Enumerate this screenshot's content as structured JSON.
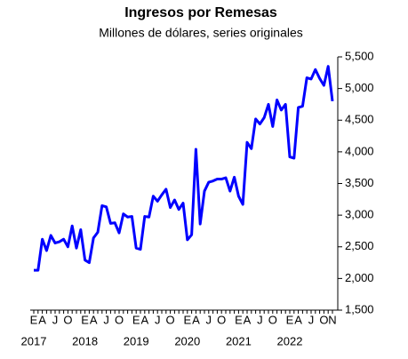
{
  "chart_data": {
    "type": "line",
    "title": "Ingresos por Remesas",
    "subtitle": "Millones de dólares, series originales",
    "categories": [
      "E",
      null,
      "A",
      null,
      null,
      "J",
      null,
      null,
      "O",
      null,
      null,
      null,
      "E",
      null,
      "A",
      null,
      null,
      "J",
      null,
      null,
      "O",
      null,
      null,
      null,
      "E",
      null,
      "A",
      null,
      null,
      "J",
      null,
      null,
      "O",
      null,
      null,
      null,
      "E",
      null,
      "A",
      null,
      null,
      "J",
      null,
      null,
      "O",
      null,
      null,
      null,
      "E",
      null,
      "A",
      null,
      null,
      "J",
      null,
      null,
      "O",
      null,
      null,
      null,
      "E",
      null,
      "A",
      null,
      null,
      "J",
      null,
      null,
      "O",
      null,
      "N"
    ],
    "years": [
      "2017",
      "2018",
      "2019",
      "2020",
      "2021",
      "2022"
    ],
    "series": [
      {
        "name": "Ingresos por Remesas",
        "color": "#0000ff",
        "values": [
          2130,
          2130,
          2620,
          2440,
          2680,
          2560,
          2580,
          2620,
          2500,
          2830,
          2480,
          2770,
          2290,
          2250,
          2640,
          2730,
          3150,
          3130,
          2870,
          2880,
          2720,
          3020,
          2970,
          2980,
          2480,
          2460,
          2980,
          2970,
          3300,
          3220,
          3320,
          3410,
          3120,
          3240,
          3090,
          3190,
          2610,
          2690,
          4040,
          2860,
          3380,
          3520,
          3540,
          3570,
          3570,
          3590,
          3380,
          3600,
          3300,
          3170,
          4150,
          4050,
          4520,
          4440,
          4540,
          4750,
          4400,
          4820,
          4660,
          4750,
          3920,
          3900,
          4700,
          4720,
          5170,
          5150,
          5300,
          5160,
          5050,
          5350,
          4800
        ]
      }
    ],
    "ylim": [
      1500,
      5500
    ],
    "yticks": [
      {
        "value": 1500,
        "label": "1,500"
      },
      {
        "value": 2000,
        "label": "2,000"
      },
      {
        "value": 2500,
        "label": "2,500"
      },
      {
        "value": 3000,
        "label": "3,000"
      },
      {
        "value": 3500,
        "label": "3,500"
      },
      {
        "value": 4000,
        "label": "4,000"
      },
      {
        "value": 4500,
        "label": "4,500"
      },
      {
        "value": 5000,
        "label": "5,000"
      },
      {
        "value": 5500,
        "label": "5,500"
      }
    ],
    "y_axis_side": "right"
  }
}
